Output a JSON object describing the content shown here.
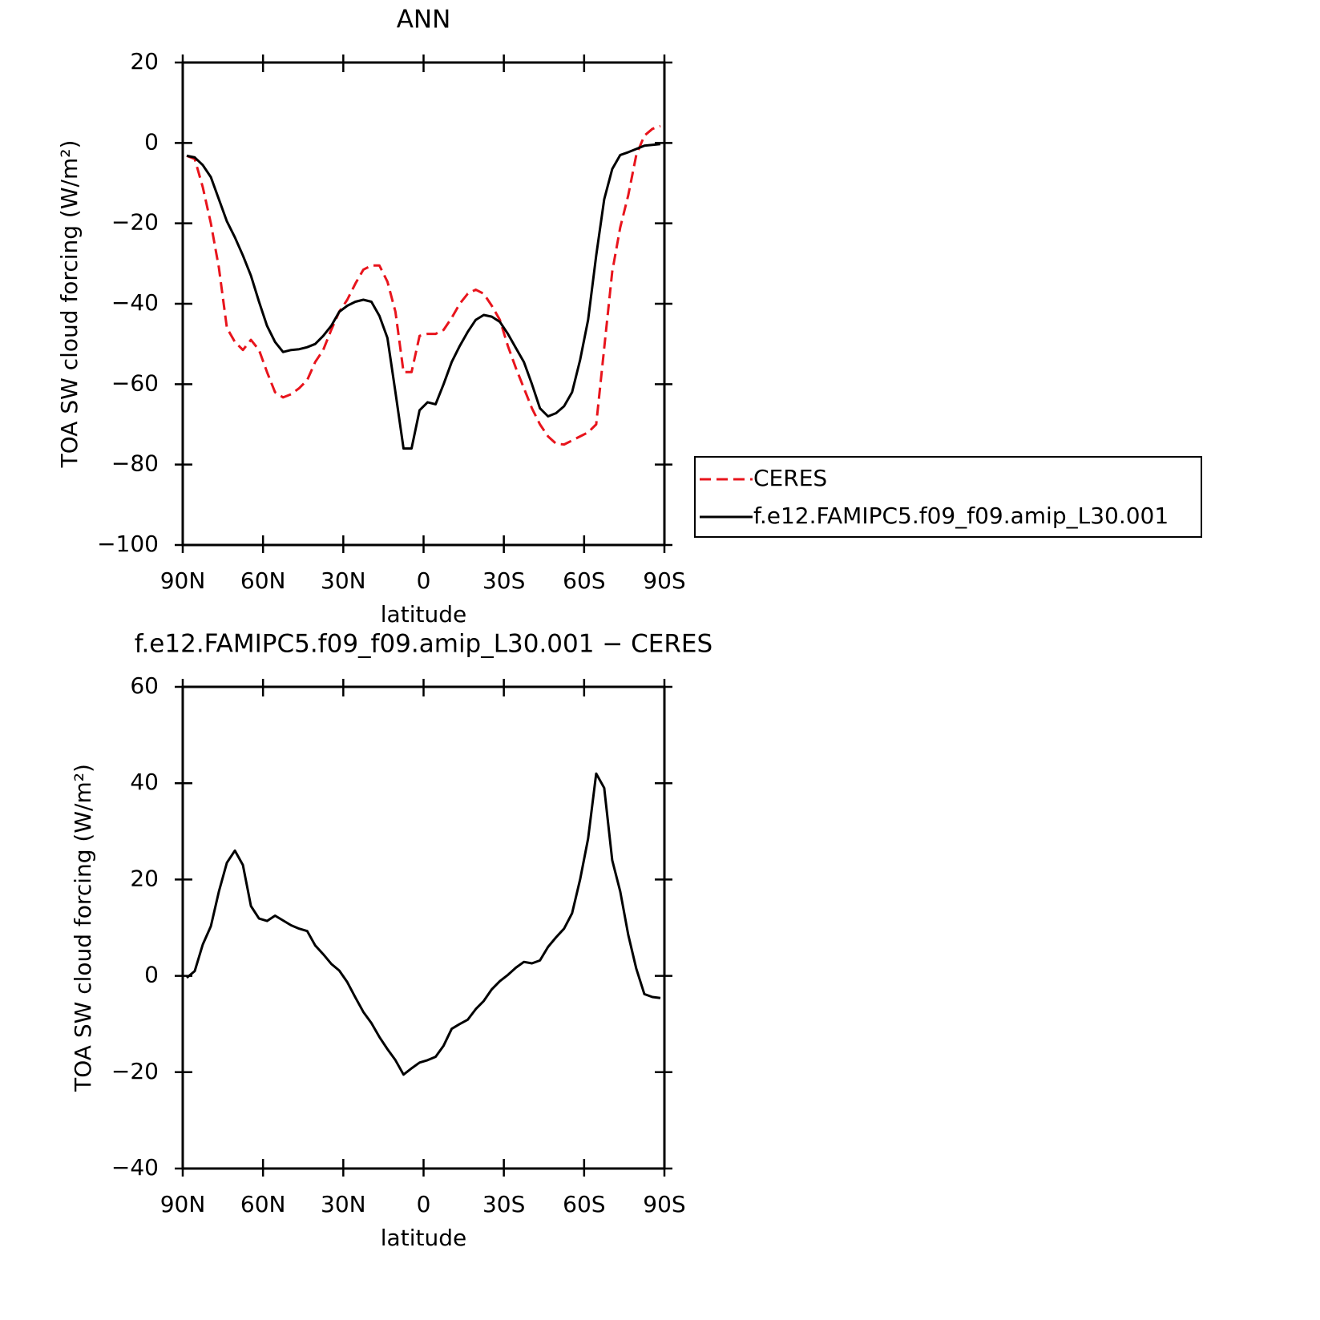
{
  "chart_data": [
    {
      "type": "line",
      "title": "ANN",
      "xlabel": "latitude",
      "ylabel": "TOA SW cloud forcing (W/m²)",
      "xlim": [
        90,
        -90
      ],
      "xticks": [
        {
          "value": 90,
          "label": "90N"
        },
        {
          "value": 60,
          "label": "60N"
        },
        {
          "value": 30,
          "label": "30N"
        },
        0,
        {
          "value": -30,
          "label": "30S"
        },
        {
          "value": -60,
          "label": "60S"
        },
        {
          "value": -90,
          "label": "90S"
        }
      ],
      "ylim": [
        -100,
        20
      ],
      "yticks": [
        {
          "value": -100,
          "label": "−100"
        },
        {
          "value": -80,
          "label": "−80"
        },
        {
          "value": -60,
          "label": "−60"
        },
        {
          "value": -40,
          "label": "−40"
        },
        {
          "value": -20,
          "label": "−20"
        },
        0,
        20
      ],
      "grid": false,
      "legend": "right",
      "x": [
        88.5,
        85.5,
        82.5,
        79.5,
        76.5,
        73.5,
        70.5,
        67.5,
        64.5,
        61.5,
        58.5,
        55.5,
        52.5,
        49.5,
        46.5,
        43.5,
        40.5,
        37.5,
        34.5,
        31.5,
        28.5,
        25.5,
        22.5,
        19.5,
        16.5,
        13.5,
        10.5,
        7.5,
        4.5,
        1.5,
        -1.5,
        -4.5,
        -7.5,
        -10.5,
        -13.5,
        -16.5,
        -19.5,
        -22.5,
        -25.5,
        -28.5,
        -31.5,
        -34.5,
        -37.5,
        -40.5,
        -43.5,
        -46.5,
        -49.5,
        -52.5,
        -55.5,
        -58.5,
        -61.5,
        -64.5,
        -67.5,
        -70.5,
        -73.5,
        -76.5,
        -79.5,
        -82.5,
        -85.5,
        -88.5
      ],
      "series": [
        {
          "name": "CERES",
          "color": "#e8141c",
          "linestyle": "dashed",
          "values": [
            -3.2,
            -4,
            -11,
            -20,
            -31,
            -46,
            -49.5,
            -51.5,
            -49,
            -51.5,
            -57,
            -62,
            -63.3,
            -62.5,
            -61,
            -59,
            -54.5,
            -51.5,
            -46.5,
            -42,
            -39,
            -35,
            -31.5,
            -30.5,
            -30.5,
            -34.5,
            -42,
            -57,
            -57,
            -48,
            -47.5,
            -47.5,
            -46.5,
            -43.5,
            -40,
            -37.5,
            -36.5,
            -37.5,
            -40.5,
            -44,
            -50.5,
            -56,
            -61,
            -66,
            -70,
            -73,
            -74.8,
            -75,
            -74,
            -73,
            -72,
            -70,
            -51,
            -32,
            -21,
            -13,
            -3,
            1.8,
            3.5,
            4.2
          ]
        },
        {
          "name": "f.e12.FAMIPC5.f09_f09.amip_L30.001",
          "color": "#000000",
          "linestyle": "solid",
          "values": [
            -3.2,
            -3.6,
            -5.5,
            -8.5,
            -14,
            -19.5,
            -23.5,
            -28,
            -33,
            -39.5,
            -45.5,
            -49.5,
            -52,
            -51.5,
            -51.3,
            -50.8,
            -50,
            -48,
            -45.5,
            -42,
            -40.5,
            -39.5,
            -39,
            -39.5,
            -43,
            -48.5,
            -62,
            -76,
            -76,
            -66.5,
            -64.5,
            -65,
            -60,
            -54.5,
            -50.5,
            -47,
            -44,
            -42.8,
            -43.2,
            -44.5,
            -47.5,
            -51,
            -54.5,
            -60,
            -66,
            -68,
            -67.2,
            -65.5,
            -62,
            -54,
            -44,
            -28,
            -14,
            -6.5,
            -3,
            -2.3,
            -1.5,
            -0.7,
            -0.5,
            -0.3
          ]
        }
      ]
    },
    {
      "type": "line",
      "title": "f.e12.FAMIPC5.f09_f09.amip_L30.001 − CERES",
      "xlabel": "latitude",
      "ylabel": "TOA SW cloud forcing (W/m²)",
      "xlim": [
        90,
        -90
      ],
      "xticks": [
        {
          "value": 90,
          "label": "90N"
        },
        {
          "value": 60,
          "label": "60N"
        },
        {
          "value": 30,
          "label": "30N"
        },
        0,
        {
          "value": -30,
          "label": "30S"
        },
        {
          "value": -60,
          "label": "60S"
        },
        {
          "value": -90,
          "label": "90S"
        }
      ],
      "ylim": [
        -40,
        60
      ],
      "yticks": [
        {
          "value": -40,
          "label": "−40"
        },
        {
          "value": -20,
          "label": "−20"
        },
        0,
        20,
        40,
        60
      ],
      "grid": false,
      "x": [
        88.5,
        85.5,
        82.5,
        79.5,
        76.5,
        73.5,
        70.5,
        67.5,
        64.5,
        61.5,
        58.5,
        55.5,
        52.5,
        49.5,
        46.5,
        43.5,
        40.5,
        37.5,
        34.5,
        31.5,
        28.5,
        25.5,
        22.5,
        19.5,
        16.5,
        13.5,
        10.5,
        7.5,
        4.5,
        1.5,
        -1.5,
        -4.5,
        -7.5,
        -10.5,
        -13.5,
        -16.5,
        -19.5,
        -22.5,
        -25.5,
        -28.5,
        -31.5,
        -34.5,
        -37.5,
        -40.5,
        -43.5,
        -46.5,
        -49.5,
        -52.5,
        -55.5,
        -58.5,
        -61.5,
        -64.5,
        -67.5,
        -70.5,
        -73.5,
        -76.5,
        -79.5,
        -82.5,
        -85.5,
        -88.5
      ],
      "series": [
        {
          "color": "#000000",
          "linestyle": "solid",
          "values": [
            -0.4,
            1,
            6.5,
            10.3,
            17.5,
            23.5,
            26,
            23,
            14.5,
            11.9,
            11.4,
            12.5,
            11.5,
            10.5,
            9.8,
            9.3,
            6.3,
            4.5,
            2.5,
            1.1,
            -1.3,
            -4.5,
            -7.5,
            -9.8,
            -12.7,
            -15.2,
            -17.5,
            -20.5,
            -19.2,
            -18,
            -17.5,
            -16.8,
            -14.5,
            -11,
            -10,
            -9.1,
            -6.9,
            -5.2,
            -2.8,
            -1.1,
            0.2,
            1.7,
            2.9,
            2.6,
            3.2,
            6,
            8,
            9.8,
            13,
            20,
            28.5,
            42,
            39,
            24,
            17.5,
            8.5,
            1.5,
            -3.8,
            -4.4,
            -4.6
          ]
        }
      ]
    }
  ]
}
